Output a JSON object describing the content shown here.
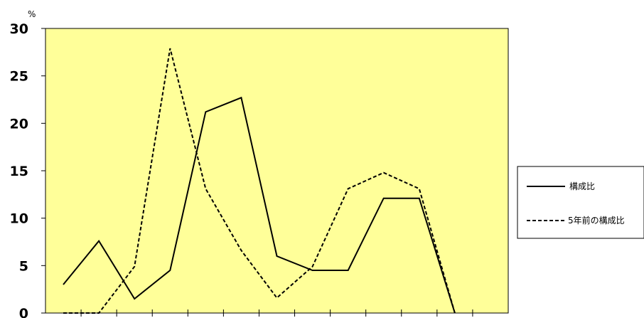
{
  "chart_data": {
    "type": "line",
    "y_unit": "%",
    "ylim": [
      0,
      30
    ],
    "y_ticks": [
      0,
      5,
      10,
      15,
      20,
      25,
      30
    ],
    "x": [
      1,
      2,
      3,
      4,
      5,
      6,
      7,
      8,
      9,
      10,
      11,
      12
    ],
    "series": [
      {
        "name": "構成比",
        "style": "solid",
        "color": "#000000",
        "values": [
          3.0,
          7.6,
          1.5,
          4.5,
          21.2,
          22.7,
          6.0,
          4.5,
          4.5,
          12.1,
          12.1,
          0.0
        ]
      },
      {
        "name": "5年前の構成比",
        "style": "dashed",
        "color": "#000000",
        "values": [
          0.0,
          0.0,
          4.9,
          27.9,
          13.1,
          6.6,
          1.6,
          4.9,
          13.1,
          14.8,
          13.1,
          0.0
        ]
      }
    ],
    "grid": false,
    "legend": "right",
    "colors": {
      "plot_background": "#ffff99",
      "line": "#000000"
    }
  }
}
